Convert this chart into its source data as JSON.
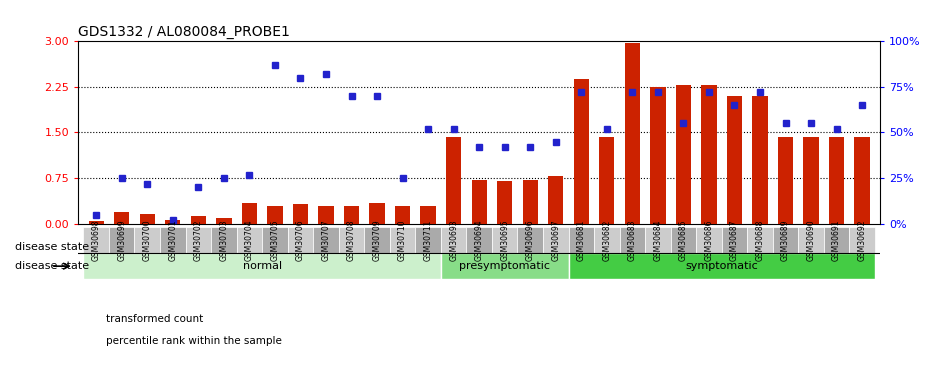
{
  "title": "GDS1332 / AL080084_PROBE1",
  "samples": [
    "GSM30698",
    "GSM30699",
    "GSM30700",
    "GSM30701",
    "GSM30702",
    "GSM30703",
    "GSM30704",
    "GSM30705",
    "GSM30706",
    "GSM30707",
    "GSM30708",
    "GSM30709",
    "GSM30710",
    "GSM30711",
    "GSM30693",
    "GSM30694",
    "GSM30695",
    "GSM30696",
    "GSM30697",
    "GSM30681",
    "GSM30682",
    "GSM30683",
    "GSM30684",
    "GSM30685",
    "GSM30686",
    "GSM30687",
    "GSM30688",
    "GSM30689",
    "GSM30690",
    "GSM30691",
    "GSM30692"
  ],
  "transformed_count": [
    0.05,
    0.2,
    0.17,
    0.07,
    0.13,
    0.1,
    0.35,
    0.3,
    0.33,
    0.3,
    0.3,
    0.35,
    0.3,
    0.3,
    1.42,
    0.72,
    0.7,
    0.72,
    0.78,
    2.37,
    1.42,
    2.97,
    2.25,
    2.28,
    2.28,
    2.1,
    2.1,
    1.42,
    1.42,
    1.42,
    1.42
  ],
  "percentile_rank_pct": [
    5,
    25,
    22,
    2,
    20,
    25,
    27,
    87,
    80,
    82,
    70,
    70,
    25,
    52,
    52,
    42,
    42,
    42,
    45,
    72,
    52,
    72,
    72,
    55,
    72,
    65,
    72,
    55,
    55,
    52,
    65
  ],
  "groups": [
    {
      "label": "normal",
      "start": 0,
      "end": 14,
      "color": "#ccf0cc"
    },
    {
      "label": "presymptomatic",
      "start": 14,
      "end": 19,
      "color": "#88dd88"
    },
    {
      "label": "symptomatic",
      "start": 19,
      "end": 31,
      "color": "#44cc44"
    }
  ],
  "bar_color": "#cc2200",
  "dot_color": "#2222cc",
  "ylim_left": [
    0,
    3
  ],
  "ylim_right": [
    0,
    100
  ],
  "yticks_left": [
    0,
    0.75,
    1.5,
    2.25,
    3.0
  ],
  "yticks_right": [
    0,
    25,
    50,
    75,
    100
  ],
  "disease_state_label": "disease state",
  "legend_items": [
    {
      "label": "transformed count",
      "color": "#cc2200"
    },
    {
      "label": "percentile rank within the sample",
      "color": "#2222cc"
    }
  ]
}
